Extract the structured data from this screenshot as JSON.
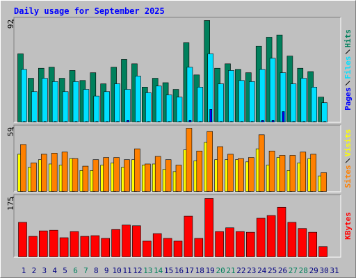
{
  "chart_data": [
    {
      "type": "bar",
      "title": "Daily usage for September 2025",
      "categories": [
        "1",
        "2",
        "3",
        "4",
        "5",
        "6",
        "7",
        "8",
        "9",
        "10",
        "11",
        "12",
        "13",
        "14",
        "15",
        "16",
        "17",
        "18",
        "19",
        "20",
        "21",
        "22",
        "23",
        "24",
        "25",
        "26",
        "27",
        "28",
        "29",
        "30",
        "31"
      ],
      "category_colors": [
        "#000080",
        "#000080",
        "#000080",
        "#000080",
        "#000080",
        "#00805c",
        "#00805c",
        "#000080",
        "#000080",
        "#000080",
        "#000080",
        "#000080",
        "#00805c",
        "#00805c",
        "#000080",
        "#000080",
        "#000080",
        "#000080",
        "#000080",
        "#00805c",
        "#00805c",
        "#000080",
        "#000080",
        "#000080",
        "#000080",
        "#000080",
        "#00805c",
        "#00805c",
        "#000080",
        "#000080",
        "#000080"
      ],
      "ylim": [
        0,
        92
      ],
      "yticks": [
        92
      ],
      "series": [
        {
          "name": "Hits",
          "color": "#00805c",
          "values": [
            62,
            40,
            49,
            50,
            40,
            47,
            38,
            45,
            35,
            50,
            57,
            53,
            32,
            40,
            36,
            30,
            72,
            43,
            92,
            49,
            53,
            48,
            45,
            69,
            77,
            79,
            60,
            49,
            46,
            23,
            null
          ]
        },
        {
          "name": "Files",
          "color": "#00e0ff",
          "values": [
            48,
            28,
            40,
            37,
            28,
            37,
            30,
            24,
            28,
            35,
            30,
            42,
            27,
            33,
            25,
            23,
            50,
            32,
            62,
            35,
            47,
            38,
            37,
            48,
            58,
            45,
            35,
            40,
            32,
            18,
            null
          ]
        },
        {
          "name": "Pages",
          "color": "#0000ff",
          "values": [
            1,
            1,
            1,
            1,
            1,
            1,
            1,
            1,
            1,
            1,
            2,
            1,
            1,
            1,
            1,
            1,
            2,
            1,
            12,
            1,
            1,
            1,
            1,
            2,
            2,
            10,
            1,
            1,
            1,
            1,
            null
          ]
        }
      ]
    },
    {
      "type": "bar",
      "ylim": [
        0,
        59
      ],
      "yticks": [
        59
      ],
      "series": [
        {
          "name": "Visits",
          "color": "#ffff00",
          "values": [
            35,
            23,
            30,
            26,
            25,
            31,
            20,
            20,
            25,
            27,
            23,
            30,
            25,
            26,
            21,
            19,
            39,
            29,
            46,
            30,
            30,
            30,
            28,
            40,
            25,
            32,
            20,
            27,
            31,
            15,
            null
          ]
        },
        {
          "name": "Sites",
          "color": "#ff8000",
          "values": [
            44,
            27,
            35,
            36,
            37,
            31,
            24,
            30,
            32,
            32,
            30,
            40,
            26,
            33,
            30,
            25,
            59,
            38,
            56,
            42,
            35,
            31,
            32,
            53,
            38,
            34,
            34,
            37,
            35,
            18,
            null
          ]
        }
      ]
    },
    {
      "type": "bar",
      "ylim": [
        0,
        175
      ],
      "yticks": [
        175
      ],
      "series": [
        {
          "name": "KBytes",
          "color": "#ff0000",
          "values": [
            103,
            62,
            78,
            80,
            58,
            76,
            62,
            64,
            56,
            82,
            95,
            93,
            48,
            70,
            56,
            48,
            121,
            56,
            173,
            76,
            87,
            76,
            74,
            115,
            123,
            147,
            103,
            85,
            74,
            32,
            null
          ]
        }
      ]
    }
  ]
}
